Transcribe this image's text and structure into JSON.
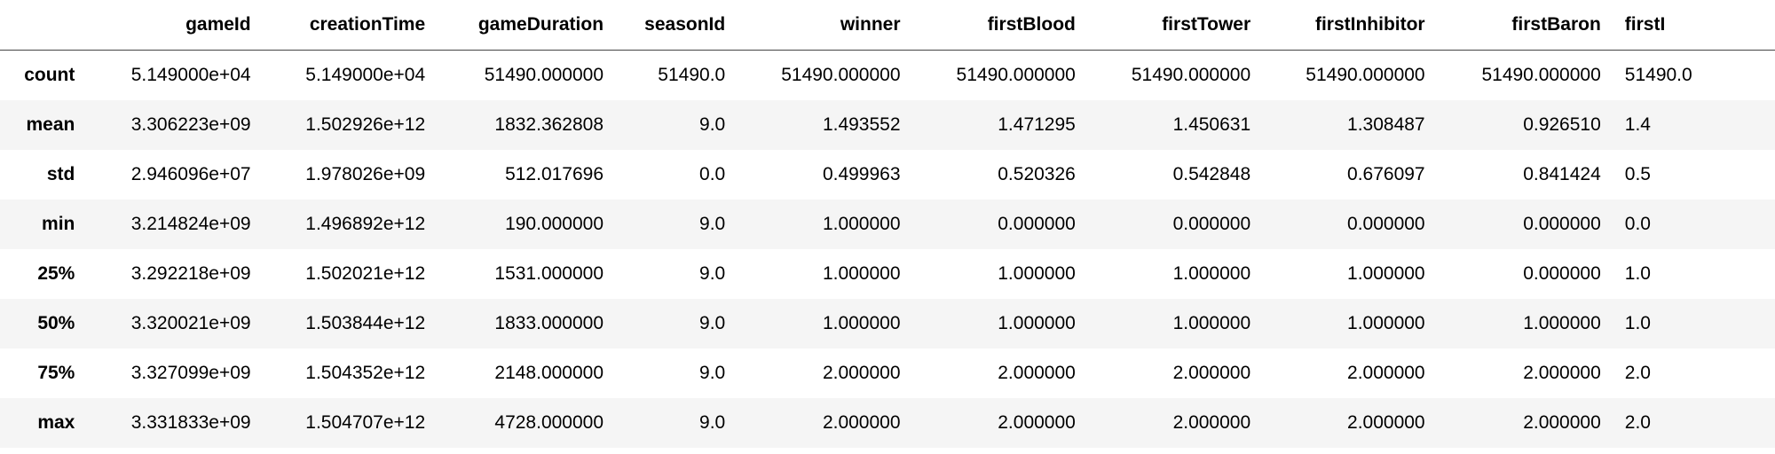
{
  "table": {
    "header": [
      "",
      "gameId",
      "creationTime",
      "gameDuration",
      "seasonId",
      "winner",
      "firstBlood",
      "firstTower",
      "firstInhibitor",
      "firstBaron",
      "firstI"
    ],
    "rows": [
      [
        "count",
        "5.149000e+04",
        "5.149000e+04",
        "51490.000000",
        "51490.0",
        "51490.000000",
        "51490.000000",
        "51490.000000",
        "51490.000000",
        "51490.000000",
        "51490.0"
      ],
      [
        "mean",
        "3.306223e+09",
        "1.502926e+12",
        "1832.362808",
        "9.0",
        "1.493552",
        "1.471295",
        "1.450631",
        "1.308487",
        "0.926510",
        "1.4"
      ],
      [
        "std",
        "2.946096e+07",
        "1.978026e+09",
        "512.017696",
        "0.0",
        "0.499963",
        "0.520326",
        "0.542848",
        "0.676097",
        "0.841424",
        "0.5"
      ],
      [
        "min",
        "3.214824e+09",
        "1.496892e+12",
        "190.000000",
        "9.0",
        "1.000000",
        "0.000000",
        "0.000000",
        "0.000000",
        "0.000000",
        "0.0"
      ],
      [
        "25%",
        "3.292218e+09",
        "1.502021e+12",
        "1531.000000",
        "9.0",
        "1.000000",
        "1.000000",
        "1.000000",
        "1.000000",
        "0.000000",
        "1.0"
      ],
      [
        "50%",
        "3.320021e+09",
        "1.503844e+12",
        "1833.000000",
        "9.0",
        "1.000000",
        "1.000000",
        "1.000000",
        "1.000000",
        "1.000000",
        "1.0"
      ],
      [
        "75%",
        "3.327099e+09",
        "1.504352e+12",
        "2148.000000",
        "9.0",
        "2.000000",
        "2.000000",
        "2.000000",
        "2.000000",
        "2.000000",
        "2.0"
      ],
      [
        "max",
        "3.331833e+09",
        "1.504707e+12",
        "4728.000000",
        "9.0",
        "2.000000",
        "2.000000",
        "2.000000",
        "2.000000",
        "2.000000",
        "2.0"
      ]
    ]
  }
}
